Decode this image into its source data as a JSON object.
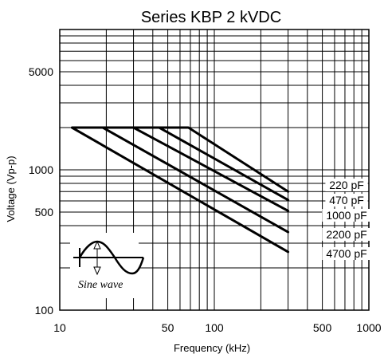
{
  "chart_data": {
    "type": "line",
    "title": "Series KBP 2 kVDC",
    "xlabel": "Frequency (kHz)",
    "ylabel": "Voltage (Vp-p)",
    "x_scale": "log",
    "y_scale": "log",
    "xlim": [
      10,
      1000
    ],
    "ylim": [
      100,
      10000
    ],
    "x_ticks": [
      10,
      50,
      100,
      500,
      1000
    ],
    "x_tick_labels": [
      "10",
      "50",
      "100",
      "500",
      "1000"
    ],
    "y_ticks": [
      100,
      500,
      1000,
      5000
    ],
    "y_tick_labels": [
      "100",
      "500",
      "1000",
      "5000"
    ],
    "grid": true,
    "series": [
      {
        "name": "220 pF",
        "points": [
          [
            68,
            2000
          ],
          [
            300,
            700
          ]
        ]
      },
      {
        "name": "470 pF",
        "points": [
          [
            44,
            2000
          ],
          [
            300,
            610
          ]
        ]
      },
      {
        "name": "1000 pF",
        "points": [
          [
            30,
            2000
          ],
          [
            300,
            510
          ]
        ]
      },
      {
        "name": "2200 pF",
        "points": [
          [
            19,
            2000
          ],
          [
            300,
            360
          ]
        ]
      },
      {
        "name": "4700 pF",
        "points": [
          [
            12,
            2000
          ],
          [
            300,
            260
          ]
        ]
      }
    ],
    "flat_level": [
      12,
      68,
      2000
    ],
    "inset_caption": "Sine wave",
    "colors": {
      "line": "#000000",
      "grid": "#000000",
      "background": "#ffffff"
    }
  }
}
